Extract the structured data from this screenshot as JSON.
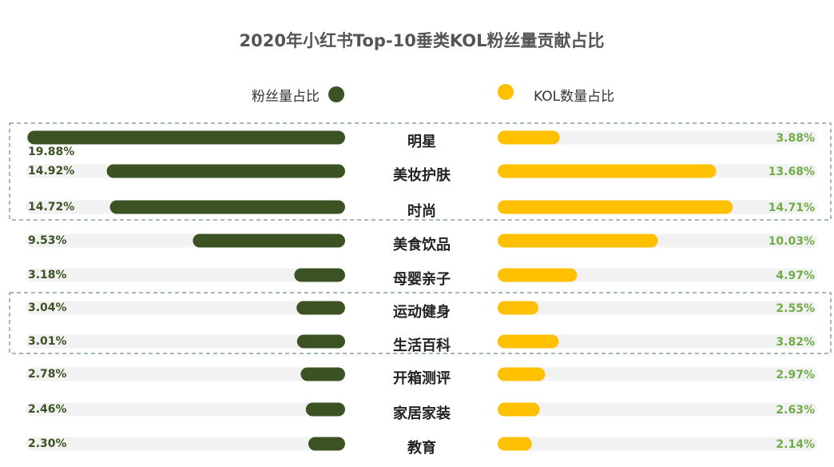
{
  "chart_data": {
    "type": "butterfly-bar",
    "title": "2020年小红书Top-10垂类KOL粉丝量贡献占比",
    "categories": [
      "明星",
      "美妆护肤",
      "时尚",
      "美食饮品",
      "母婴亲子",
      "运动健身",
      "生活百科",
      "开箱测评",
      "家居家装",
      "教育"
    ],
    "xlim": [
      0,
      20
    ],
    "series": [
      {
        "name": "粉丝量占比",
        "color": "#3b5323",
        "label_color": "#3b5323",
        "values": [
          19.88,
          14.92,
          14.72,
          9.53,
          3.18,
          3.04,
          3.01,
          2.78,
          2.46,
          2.3
        ],
        "value_labels": [
          "19.88%",
          "14.92%",
          "14.72%",
          "9.53%",
          "3.18%",
          "3.04%",
          "3.01%",
          "2.78%",
          "2.46%",
          "2.30%"
        ]
      },
      {
        "name": "KOL数量占比",
        "color": "#ffc000",
        "label_color": "#70ad47",
        "values": [
          3.88,
          13.68,
          14.71,
          10.03,
          4.97,
          2.55,
          3.82,
          2.97,
          2.63,
          2.14
        ],
        "value_labels": [
          "3.88%",
          "13.68%",
          "14.71%",
          "10.03%",
          "4.97%",
          "2.55%",
          "3.82%",
          "2.97%",
          "2.63%",
          "2.14%"
        ]
      }
    ]
  }
}
